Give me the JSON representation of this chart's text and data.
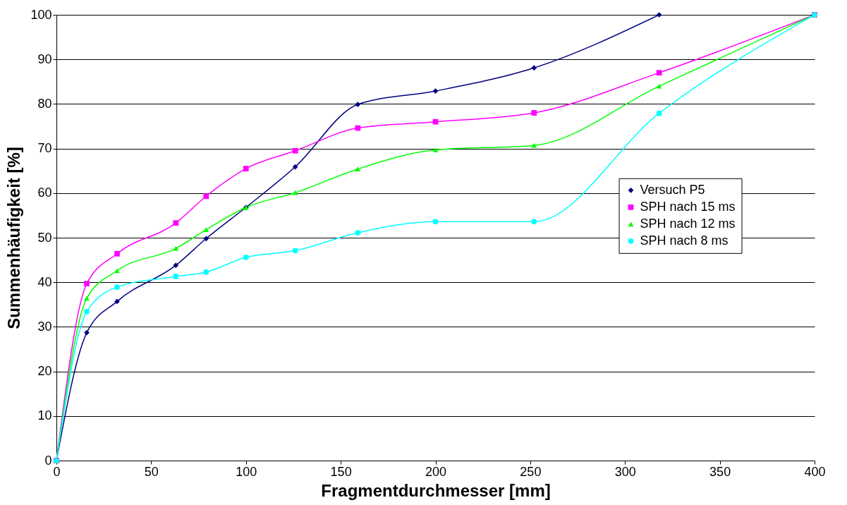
{
  "chart_data": {
    "type": "line",
    "xlabel": "Fragmentdurchmesser [mm]",
    "ylabel": "Summenhäufigkeit [%]",
    "xlim": [
      0,
      400
    ],
    "xticks": [
      0,
      50,
      100,
      150,
      200,
      250,
      300,
      350,
      400
    ],
    "ylim": [
      0,
      100
    ],
    "yticks": [
      0,
      10,
      20,
      30,
      40,
      50,
      60,
      70,
      80,
      90,
      100
    ],
    "grid": "y",
    "legend": "right",
    "line_style": "solid",
    "series": [
      {
        "name": "Versuch P5",
        "color": "#000080",
        "marker": "diamond",
        "x": [
          0,
          16,
          32,
          63,
          79,
          100,
          126,
          159,
          200,
          252,
          318
        ],
        "values": [
          0,
          28.7,
          35.7,
          43.8,
          49.8,
          56.8,
          65.9,
          79.9,
          82.9,
          88.1,
          100
        ]
      },
      {
        "name": "SPH nach 15 ms",
        "color": "#ff00ff",
        "marker": "square",
        "x": [
          0,
          16,
          32,
          63,
          79,
          100,
          126,
          159,
          200,
          252,
          318,
          400
        ],
        "values": [
          0,
          39.7,
          46.4,
          53.3,
          59.3,
          65.5,
          69.5,
          74.6,
          76.0,
          78.0,
          87.0,
          100
        ]
      },
      {
        "name": "SPH nach 12 ms",
        "color": "#00ff00",
        "marker": "triangle",
        "x": [
          0,
          16,
          32,
          63,
          79,
          100,
          126,
          159,
          200,
          252,
          318,
          400
        ],
        "values": [
          0,
          36.4,
          42.6,
          47.6,
          51.8,
          56.8,
          60.1,
          65.4,
          69.7,
          70.7,
          84.0,
          100
        ]
      },
      {
        "name": "SPH nach 8 ms",
        "color": "#00ffff",
        "marker": "circle",
        "x": [
          0,
          16,
          32,
          63,
          79,
          100,
          126,
          159,
          200,
          252,
          318,
          400
        ],
        "values": [
          0,
          33.4,
          38.9,
          41.3,
          42.3,
          45.6,
          47.1,
          51.1,
          53.6,
          53.6,
          77.9,
          100
        ]
      }
    ]
  }
}
